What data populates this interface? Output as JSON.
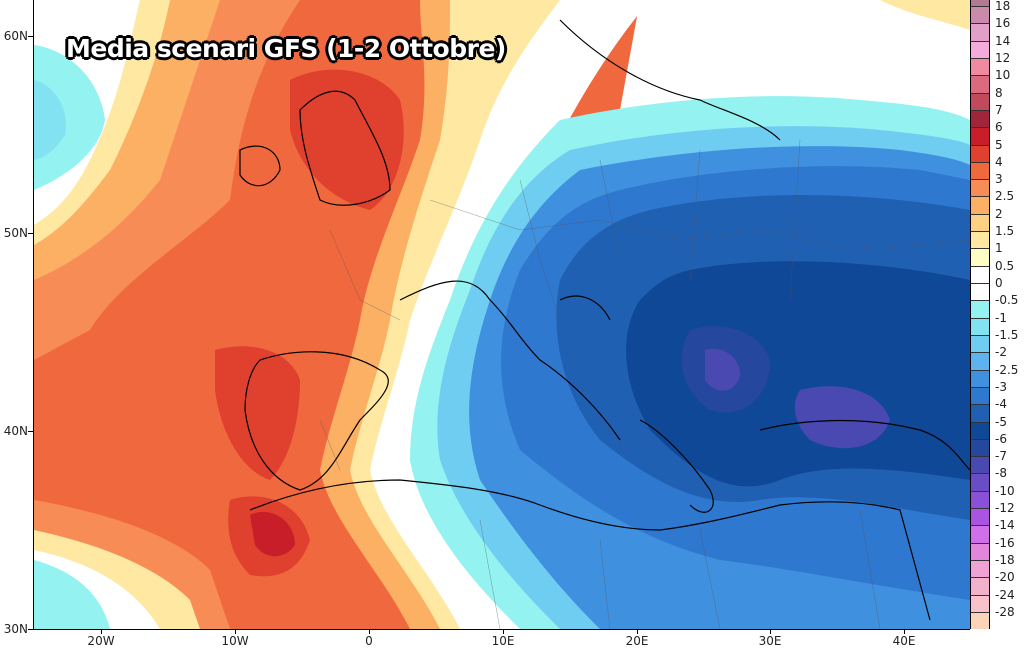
{
  "title": "Media scenari GFS (1-2 Ottobre)",
  "axes": {
    "lat_labels": [
      "60N",
      "50N",
      "40N",
      "30N"
    ],
    "lon_labels": [
      "20W",
      "10W",
      "0",
      "10E",
      "20E",
      "30E",
      "40E"
    ]
  },
  "colorbar": {
    "labels": [
      "18",
      "16",
      "14",
      "12",
      "10",
      "8",
      "7",
      "6",
      "5",
      "4",
      "3",
      "2.5",
      "2",
      "1.5",
      "1",
      "0.5",
      "0",
      "-0.5",
      "-1",
      "-1.5",
      "-2",
      "-2.5",
      "-3",
      "-4",
      "-5",
      "-6",
      "-7",
      "-8",
      "-10",
      "-12",
      "-14",
      "-16",
      "-18",
      "-20",
      "-24",
      "-28"
    ],
    "colors": [
      "#b07a92",
      "#c98aac",
      "#e2a0c8",
      "#f4aadb",
      "#ef8aa0",
      "#dc6a7e",
      "#c04a5c",
      "#a0243a",
      "#c81e2a",
      "#e0402e",
      "#f0683e",
      "#f88c56",
      "#fcb064",
      "#fdd084",
      "#fee8a2",
      "#fffcc4",
      "#ffffff",
      "#ffffff",
      "#94f2f0",
      "#82e2f2",
      "#70cdf2",
      "#5eb2f0",
      "#4090e0",
      "#2f78d0",
      "#2060b2",
      "#0e4896",
      "#26479e",
      "#4a49b2",
      "#6a4cc4",
      "#8a50d8",
      "#aa54e4",
      "#d070e8",
      "#e286dc",
      "#f0a2d6",
      "#f2b2cc",
      "#f8c2c8",
      "#fcd2b8"
    ]
  }
}
